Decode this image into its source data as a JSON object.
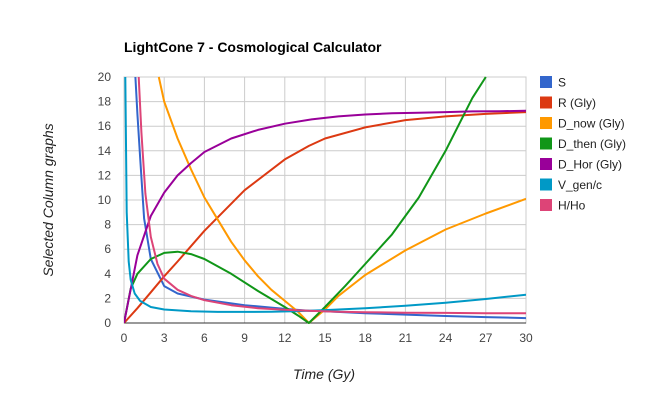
{
  "chart_data": {
    "type": "line",
    "title": "LightCone 7 - Cosmological Calculator",
    "xlabel": "Time (Gy)",
    "ylabel": "Selected Column graphs",
    "xlim": [
      0,
      30
    ],
    "ylim": [
      0,
      20
    ],
    "xticks": [
      0,
      3,
      6,
      9,
      12,
      15,
      18,
      21,
      24,
      27,
      30
    ],
    "yticks": [
      0,
      2,
      4,
      6,
      8,
      10,
      12,
      14,
      16,
      18,
      20
    ],
    "grid": true,
    "legend_position": "right",
    "series": [
      {
        "name": "S",
        "color": "#3366cc",
        "x": [
          0.85,
          1,
          1.2,
          1.5,
          2,
          3,
          4,
          6,
          9,
          12,
          13.8,
          15,
          18,
          21,
          24,
          27,
          30
        ],
        "y": [
          20,
          17,
          13.5,
          8.5,
          5.2,
          3.0,
          2.4,
          1.9,
          1.45,
          1.15,
          1.0,
          0.95,
          0.8,
          0.68,
          0.57,
          0.48,
          0.4
        ]
      },
      {
        "name": "R (Gly)",
        "color": "#dc3912",
        "x": [
          0,
          1,
          2,
          3,
          4,
          6,
          9,
          12,
          13.8,
          15,
          18,
          21,
          24,
          27,
          30
        ],
        "y": [
          0,
          1.2,
          2.5,
          3.8,
          5.0,
          7.5,
          10.8,
          13.3,
          14.4,
          15.0,
          15.9,
          16.5,
          16.8,
          17.0,
          17.15
        ]
      },
      {
        "name": "D_now (Gly)",
        "color": "#ff9900",
        "x": [
          2.6,
          3,
          4,
          5,
          6,
          7,
          8,
          9,
          10,
          11,
          12,
          13,
          13.8,
          15,
          16,
          18,
          21,
          24,
          27,
          30
        ],
        "y": [
          20,
          18.0,
          15.0,
          12.5,
          10.2,
          8.4,
          6.6,
          5.1,
          3.8,
          2.7,
          1.8,
          0.9,
          0.0,
          1.1,
          2.2,
          3.9,
          5.9,
          7.6,
          8.9,
          10.1
        ]
      },
      {
        "name": "D_then (Gly)",
        "color": "#109618",
        "x": [
          0,
          0.5,
          1,
          2,
          3,
          4,
          5,
          6,
          8,
          10,
          12,
          13,
          13.8,
          15,
          16.5,
          18,
          20,
          22,
          24,
          26,
          27
        ],
        "y": [
          0,
          2.8,
          4.0,
          5.2,
          5.7,
          5.8,
          5.6,
          5.2,
          4.0,
          2.6,
          1.3,
          0.6,
          0.0,
          1.3,
          3.0,
          4.8,
          7.2,
          10.2,
          14.0,
          18.3,
          20
        ]
      },
      {
        "name": "D_Hor (Gly)",
        "color": "#990099",
        "x": [
          0,
          1,
          2,
          3,
          4,
          5,
          6,
          8,
          10,
          12,
          14,
          16,
          18,
          20,
          22,
          24,
          26,
          28,
          30
        ],
        "y": [
          0,
          5.5,
          8.7,
          10.6,
          12.0,
          13.0,
          13.9,
          15.0,
          15.7,
          16.2,
          16.55,
          16.8,
          16.95,
          17.05,
          17.1,
          17.15,
          17.2,
          17.22,
          17.25
        ]
      },
      {
        "name": "V_gen/c",
        "color": "#0099c6",
        "x": [
          0.1,
          0.2,
          0.35,
          0.5,
          0.8,
          1.2,
          2,
          3,
          5,
          7,
          9,
          11,
          13,
          15,
          18,
          21,
          24,
          27,
          30
        ],
        "y": [
          20,
          9,
          5,
          3.5,
          2.4,
          1.8,
          1.3,
          1.1,
          0.95,
          0.9,
          0.9,
          0.92,
          0.97,
          1.05,
          1.2,
          1.4,
          1.65,
          1.95,
          2.3
        ]
      },
      {
        "name": "H/Ho",
        "color": "#dd4477",
        "x": [
          1.1,
          1.3,
          1.6,
          2,
          2.5,
          3,
          4,
          5,
          6,
          8,
          10,
          12,
          14,
          16,
          18,
          21,
          24,
          27,
          30
        ],
        "y": [
          20,
          15.5,
          10.5,
          7.0,
          4.8,
          3.6,
          2.7,
          2.2,
          1.85,
          1.45,
          1.2,
          1.07,
          0.98,
          0.92,
          0.88,
          0.84,
          0.82,
          0.8,
          0.79
        ]
      }
    ]
  }
}
